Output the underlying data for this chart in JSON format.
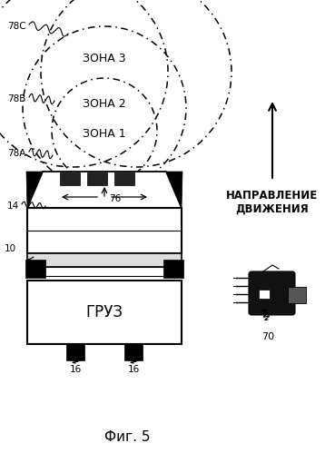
{
  "title": "Фиг. 5",
  "bg_color": "#ffffff",
  "zone_labels": [
    "ЗОНА 3",
    "ЗОНА 2",
    "ЗОНА 1"
  ],
  "label_78C": "78С",
  "label_78B": "78B",
  "label_78A": "78А",
  "label_14": "14",
  "label_10": "10",
  "label_16a": "16",
  "label_16b": "16",
  "label_76": "76",
  "label_70": "70",
  "label_gruz": "ГРУЗ",
  "label_direction": "НАПРАВЛЕНИЕ\nДВИЖЕНИЯ",
  "text_color": "#000000"
}
